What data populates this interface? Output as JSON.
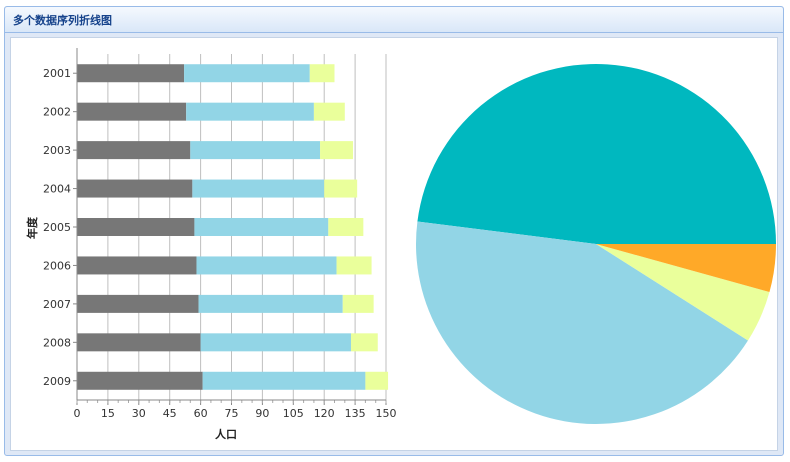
{
  "panel": {
    "title": "多个数据序列折线图"
  },
  "colors": {
    "series1": "#777777",
    "series2": "#92d5e6",
    "series3": "#eaff9b",
    "pie": [
      "#00b8bf",
      "#92d5e6",
      "#eaff9b",
      "#ffa928"
    ]
  },
  "chart_data": [
    {
      "type": "bar",
      "orientation": "horizontal",
      "stacked": true,
      "categories": [
        "2001",
        "2002",
        "2003",
        "2004",
        "2005",
        "2006",
        "2007",
        "2008",
        "2009"
      ],
      "series": [
        {
          "values": [
            52,
            53,
            55,
            56,
            57,
            58,
            59,
            60,
            61
          ]
        },
        {
          "values": [
            61,
            62,
            63,
            64,
            65,
            68,
            70,
            73,
            79
          ]
        },
        {
          "values": [
            12,
            15,
            16,
            16,
            17,
            17,
            15,
            13,
            11
          ]
        }
      ],
      "xlabel": "人口",
      "ylabel": "年度",
      "xlim": [
        0,
        150
      ],
      "xticks": [
        "0",
        "15",
        "30",
        "45",
        "60",
        "75",
        "90",
        "105",
        "120",
        "135",
        "150"
      ],
      "grid": true
    },
    {
      "type": "pie",
      "values": [
        48,
        43,
        4.7,
        4.3
      ]
    }
  ]
}
